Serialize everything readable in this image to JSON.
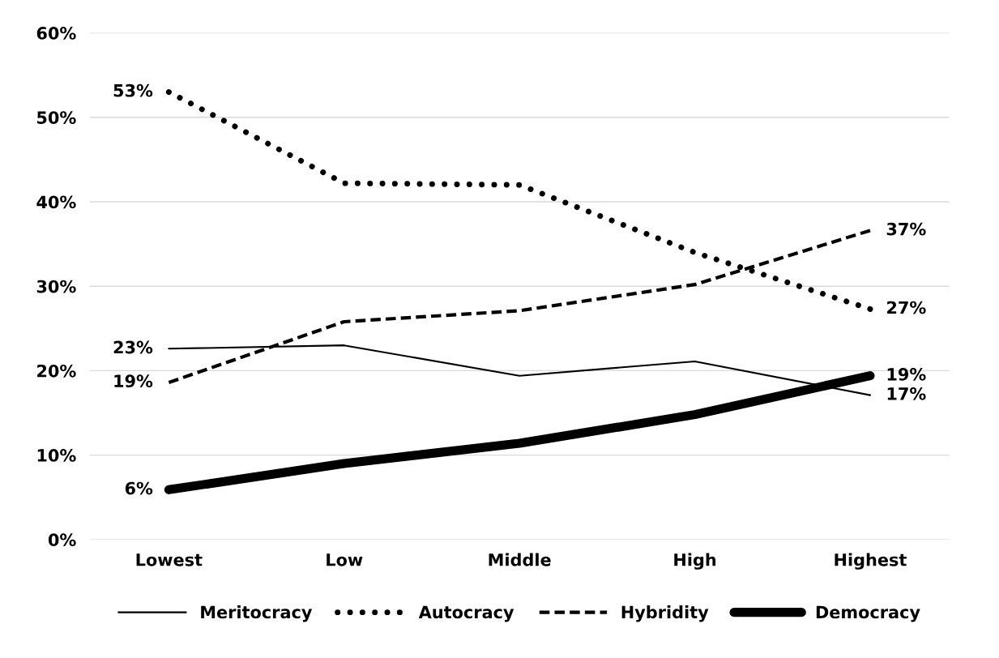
{
  "chart_data": {
    "type": "line",
    "categories": [
      "Lowest",
      "Low",
      "Middle",
      "High",
      "Highest"
    ],
    "series": [
      {
        "name": "Meritocracy",
        "color": "#000000",
        "line_style": "solid",
        "values": [
          22.6,
          23.0,
          19.4,
          21.1,
          17.1
        ],
        "value_labels": [
          "23%",
          null,
          null,
          null,
          "17%"
        ]
      },
      {
        "name": "Autocracy",
        "color": "#000000",
        "line_style": "dotted",
        "values": [
          53.0,
          42.2,
          42.0,
          34.0,
          27.3
        ],
        "value_labels": [
          "53%",
          null,
          null,
          null,
          "27%"
        ]
      },
      {
        "name": "Hybridity",
        "color": "#000000",
        "line_style": "dashed",
        "values": [
          18.6,
          25.8,
          27.1,
          30.2,
          36.6
        ],
        "value_labels": [
          "19%",
          null,
          null,
          null,
          "37%"
        ]
      },
      {
        "name": "Democracy",
        "color": "#000000",
        "line_style": "solid",
        "values": [
          5.9,
          9.0,
          11.4,
          14.8,
          19.4
        ],
        "value_labels": [
          "6%",
          null,
          null,
          null,
          "19%"
        ]
      }
    ],
    "ylim": [
      0,
      60
    ],
    "yticks": [
      {
        "value": 0,
        "label": "0%"
      },
      {
        "value": 10,
        "label": "10%"
      },
      {
        "value": 20,
        "label": "20%"
      },
      {
        "value": 30,
        "label": "30%"
      },
      {
        "value": 40,
        "label": "40%"
      },
      {
        "value": 50,
        "label": "50%"
      },
      {
        "value": 60,
        "label": "60%"
      }
    ],
    "grid": "y",
    "legend": "bottom",
    "marker": "none"
  }
}
